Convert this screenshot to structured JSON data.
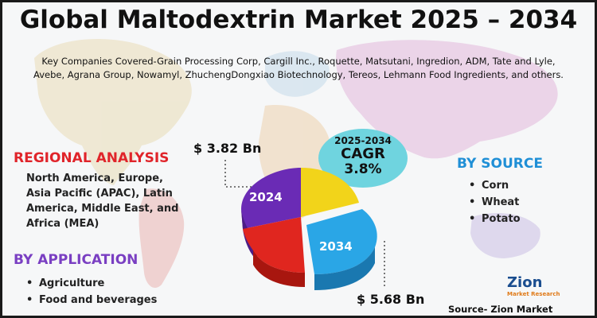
{
  "title": "Global Maltodextrin Market 2025 – 2034",
  "companies_line1": "Key Companies Covered-Grain Processing Corp, Cargill Inc., Roquette, Matsutani, Ingredion, ADM, Tate and Lyle,",
  "companies_line2": "Avebe, Agrana Group, Nowamyl, ZhuchengDongxiao Biotechnology, Tereos, Lehmann Food Ingredients, and others.",
  "regional": {
    "heading": "REGIONAL ANALYSIS",
    "text": "North America, Europe, Asia Pacific (APAC), Latin America, Middle East, and Africa (MEA)"
  },
  "application": {
    "heading": "BY APPLICATION",
    "items": [
      "Agriculture",
      "Food and beverages"
    ]
  },
  "source": {
    "heading": "BY SOURCE",
    "items": [
      "Corn",
      "Wheat",
      "Potato"
    ]
  },
  "cagr": {
    "years": "2025-2034",
    "label": "CAGR",
    "value": "3.8%"
  },
  "market": {
    "value_2024": "$ 3.82 Bn",
    "value_2034": "$ 5.68 Bn",
    "year_2024": "2024",
    "year_2034": "2034"
  },
  "logo": {
    "name": "Zion",
    "tagline": "Market Research"
  },
  "source_credit": "Source- Zion Market Research",
  "colors": {
    "regional": "#e0242a",
    "application": "#7a3fc2",
    "source": "#1f8fd6",
    "cagr_bubble": "#6fd4df",
    "pie_purple": "#6a2bb5",
    "pie_yellow": "#f2d41a",
    "pie_red": "#e0261f",
    "pie_blue": "#2aa6e6"
  }
}
